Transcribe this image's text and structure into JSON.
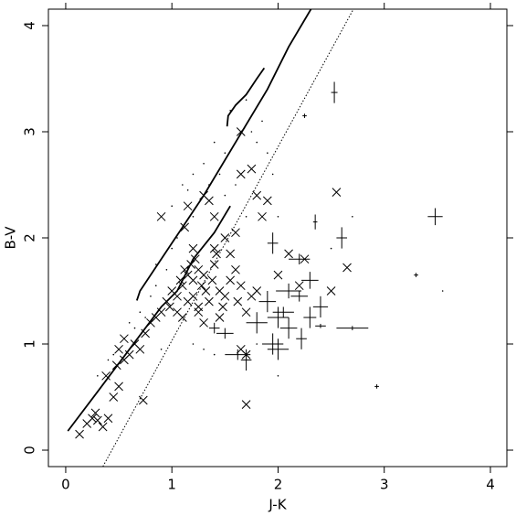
{
  "chart_data": {
    "type": "scatter",
    "xlabel": "J-K",
    "ylabel": "B-V",
    "xlim": [
      -0.163,
      4.155
    ],
    "ylim": [
      -0.155,
      4.155
    ],
    "xticks": [
      0,
      1,
      2,
      3,
      4
    ],
    "yticks": [
      0,
      1,
      2,
      3,
      4
    ],
    "color": "#000000",
    "series": [
      {
        "style": "x",
        "x": [
          0.13,
          0.2,
          0.25,
          0.3,
          0.35,
          0.4,
          0.28,
          0.45,
          0.38,
          0.5,
          0.48,
          0.55,
          0.6,
          0.65,
          0.7,
          0.75,
          0.8,
          0.85,
          0.9,
          0.95,
          0.98,
          1.0,
          1.05,
          1.08,
          1.1,
          1.12,
          1.15,
          1.18,
          1.2,
          1.22,
          1.25,
          1.28,
          1.3,
          1.32,
          1.35,
          1.38,
          1.4,
          1.42,
          1.45,
          1.48,
          1.5,
          1.55,
          1.6,
          1.62,
          1.65,
          1.7,
          1.75,
          1.8,
          1.05,
          1.1,
          1.15,
          1.2,
          1.25,
          1.3,
          0.9,
          1.15,
          1.12,
          1.3,
          1.35,
          1.4,
          1.5,
          1.6,
          1.65,
          1.75,
          1.65,
          1.8,
          1.9,
          1.85,
          0.73,
          1.7,
          2.0,
          2.1,
          2.2,
          2.25,
          2.55,
          2.65,
          2.5,
          1.4,
          1.55,
          1.2,
          1.25,
          1.45,
          0.5,
          0.55,
          1.65,
          1.7
        ],
        "values": [
          0.15,
          0.25,
          0.3,
          0.28,
          0.22,
          0.3,
          0.35,
          0.5,
          0.7,
          0.6,
          0.8,
          0.85,
          0.9,
          1.0,
          0.95,
          1.1,
          1.2,
          1.25,
          1.3,
          1.4,
          1.35,
          1.5,
          1.45,
          1.6,
          1.55,
          1.7,
          1.65,
          1.75,
          1.6,
          1.8,
          1.7,
          1.55,
          1.65,
          1.5,
          1.4,
          1.6,
          1.75,
          1.85,
          1.5,
          1.35,
          1.45,
          1.6,
          1.7,
          1.4,
          1.55,
          1.3,
          1.45,
          1.5,
          1.3,
          1.25,
          1.4,
          1.45,
          1.3,
          1.2,
          2.2,
          2.3,
          2.1,
          2.4,
          2.35,
          2.2,
          2.0,
          2.05,
          2.6,
          2.65,
          3.0,
          2.4,
          2.35,
          2.2,
          0.47,
          0.43,
          1.65,
          1.85,
          1.55,
          1.8,
          2.43,
          1.72,
          1.5,
          1.9,
          1.85,
          1.9,
          1.35,
          1.25,
          0.95,
          1.05,
          0.95,
          0.9
        ]
      },
      {
        "style": "plus",
        "x": [
          2.53,
          2.25,
          3.48,
          2.6,
          2.35,
          1.95,
          2.2,
          2.3,
          2.1,
          1.9,
          2.0,
          2.2,
          2.4,
          2.7,
          2.4,
          2.05,
          1.8,
          1.95,
          2.0,
          1.62,
          1.7,
          2.22,
          2.1,
          3.3,
          2.93,
          1.5,
          1.4,
          2.3
        ],
        "values": [
          3.37,
          3.15,
          2.2,
          2.0,
          2.15,
          1.95,
          1.8,
          1.6,
          1.5,
          1.4,
          1.25,
          1.45,
          1.35,
          1.15,
          1.17,
          1.3,
          1.2,
          1.0,
          0.95,
          0.9,
          0.85,
          1.05,
          1.15,
          1.65,
          0.6,
          1.1,
          1.15,
          1.25
        ],
        "xerr": [
          0.03,
          0.02,
          0.07,
          0.05,
          0.02,
          0.05,
          0.1,
          0.08,
          0.12,
          0.08,
          0.1,
          0.08,
          0.07,
          0.15,
          0.05,
          0.1,
          0.1,
          0.1,
          0.1,
          0.12,
          0.05,
          0.05,
          0.08,
          0.02,
          0.02,
          0.08,
          0.05,
          0.06
        ],
        "yerr": [
          0.1,
          0.02,
          0.08,
          0.1,
          0.07,
          0.1,
          0.05,
          0.08,
          0.07,
          0.1,
          0.1,
          0.05,
          0.1,
          0.02,
          0.02,
          0.05,
          0.1,
          0.1,
          0.1,
          0.05,
          0.1,
          0.1,
          0.1,
          0.02,
          0.02,
          0.05,
          0.05,
          0.1
        ]
      },
      {
        "style": "dot",
        "x": [
          0.3,
          0.4,
          0.45,
          0.6,
          0.65,
          0.7,
          0.8,
          0.85,
          0.95,
          1.0,
          1.05,
          1.1,
          1.2,
          1.3,
          1.35,
          1.4,
          1.45,
          1.5,
          1.55,
          1.6,
          1.7,
          1.75,
          1.8,
          1.6,
          1.5,
          1.7,
          1.9,
          1.85,
          1.95,
          2.0,
          1.8,
          1.2,
          1.3,
          1.4,
          0.9,
          2.5,
          2.7,
          3.55,
          2.0,
          1.2,
          1.0,
          1.15,
          0.85,
          0.75
        ],
        "values": [
          0.7,
          0.85,
          0.9,
          1.2,
          1.15,
          1.3,
          1.45,
          1.55,
          1.7,
          1.9,
          2.0,
          2.5,
          2.6,
          2.7,
          2.5,
          2.9,
          2.6,
          2.8,
          3.2,
          2.9,
          3.3,
          3.0,
          2.9,
          2.5,
          2.4,
          2.2,
          2.8,
          3.1,
          2.6,
          2.2,
          1.0,
          1.0,
          0.95,
          0.9,
          0.95,
          1.9,
          2.2,
          1.5,
          0.7,
          2.2,
          2.3,
          2.45,
          1.75,
          1.25
        ]
      },
      {
        "style": "solid",
        "x": [
          0.02,
          0.3,
          0.6,
          0.9,
          1.05,
          1.2,
          1.4,
          1.55
        ],
        "values": [
          0.18,
          0.55,
          0.95,
          1.35,
          1.5,
          1.8,
          2.05,
          2.3
        ]
      },
      {
        "style": "solid",
        "x": [
          0.67,
          0.7,
          1.0,
          1.3,
          1.6,
          1.9,
          2.1,
          2.31
        ],
        "values": [
          1.41,
          1.5,
          1.95,
          2.4,
          2.9,
          3.4,
          3.8,
          4.155
        ]
      },
      {
        "style": "solid",
        "x": [
          1.52,
          1.53,
          1.6,
          1.7,
          1.8,
          1.87
        ],
        "values": [
          3.05,
          3.15,
          3.25,
          3.35,
          3.5,
          3.6
        ]
      },
      {
        "style": "dotted",
        "x": [
          0.35,
          2.71
        ],
        "values": [
          -0.155,
          4.155
        ]
      }
    ]
  }
}
